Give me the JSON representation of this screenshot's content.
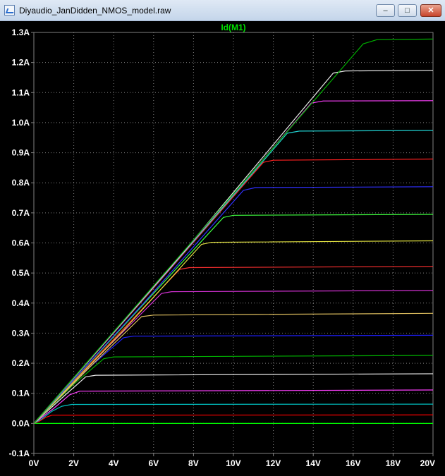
{
  "window": {
    "title": "Diyaudio_JanDidden_NMOS_model.raw"
  },
  "colors": {
    "background": "#000000",
    "grid": "#808080",
    "tick_text": "#ffffff",
    "title": "#00e000"
  },
  "chart_data": {
    "type": "line",
    "title": "Id(M1)",
    "xlabel": "",
    "ylabel": "",
    "xlim": [
      0,
      20
    ],
    "ylim": [
      -0.1,
      1.3
    ],
    "x_ticks": [
      "0V",
      "2V",
      "4V",
      "6V",
      "8V",
      "10V",
      "12V",
      "14V",
      "16V",
      "18V",
      "20V"
    ],
    "y_ticks": [
      "1.3A",
      "1.2A",
      "1.1A",
      "1.0A",
      "0.9A",
      "0.8A",
      "0.7A",
      "0.6A",
      "0.5A",
      "0.4A",
      "0.3A",
      "0.2A",
      "0.1A",
      "0.0A",
      "-0.1A"
    ],
    "grid": true,
    "series": [
      {
        "color": "#00ff00",
        "values": [
          [
            0,
            0
          ],
          [
            0.02,
            0.0
          ],
          [
            20,
            0.0
          ]
        ]
      },
      {
        "color": "#ff0000",
        "values": [
          [
            0,
            0
          ],
          [
            0.3,
            0.008
          ],
          [
            0.6,
            0.02
          ],
          [
            0.9,
            0.027
          ],
          [
            20,
            0.028
          ]
        ]
      },
      {
        "color": "#00c0c0",
        "values": [
          [
            0,
            0
          ],
          [
            0.4,
            0.015
          ],
          [
            0.9,
            0.04
          ],
          [
            1.4,
            0.057
          ],
          [
            1.9,
            0.063
          ],
          [
            20,
            0.064
          ]
        ]
      },
      {
        "color": "#ff40ff",
        "values": [
          [
            0,
            0
          ],
          [
            1.0,
            0.05
          ],
          [
            1.8,
            0.095
          ],
          [
            2.3,
            0.107
          ],
          [
            20,
            0.111
          ]
        ]
      },
      {
        "color": "#e8e8e8",
        "values": [
          [
            0,
            0
          ],
          [
            1.5,
            0.09
          ],
          [
            2.6,
            0.155
          ],
          [
            3.1,
            0.16
          ],
          [
            20,
            0.165
          ]
        ]
      },
      {
        "color": "#00b000",
        "values": [
          [
            0,
            0
          ],
          [
            2.0,
            0.13
          ],
          [
            3.5,
            0.215
          ],
          [
            4.0,
            0.221
          ],
          [
            20,
            0.226
          ]
        ]
      },
      {
        "color": "#2020ff",
        "values": [
          [
            0,
            0
          ],
          [
            2.5,
            0.17
          ],
          [
            4.5,
            0.285
          ],
          [
            5.0,
            0.29
          ],
          [
            20,
            0.293
          ]
        ]
      },
      {
        "color": "#e0c060",
        "values": [
          [
            0,
            0
          ],
          [
            3.0,
            0.2
          ],
          [
            5.4,
            0.355
          ],
          [
            6.0,
            0.36
          ],
          [
            20,
            0.366
          ]
        ]
      },
      {
        "color": "#d030d0",
        "values": [
          [
            0,
            0
          ],
          [
            3.5,
            0.24
          ],
          [
            6.4,
            0.432
          ],
          [
            6.9,
            0.438
          ],
          [
            20,
            0.442
          ]
        ]
      },
      {
        "color": "#ff3030",
        "values": [
          [
            0,
            0
          ],
          [
            4.0,
            0.28
          ],
          [
            7.3,
            0.512
          ],
          [
            7.8,
            0.518
          ],
          [
            20,
            0.522
          ]
        ]
      },
      {
        "color": "#e0e040",
        "values": [
          [
            0,
            0
          ],
          [
            4.5,
            0.31
          ],
          [
            8.4,
            0.595
          ],
          [
            8.9,
            0.602
          ],
          [
            20,
            0.607
          ]
        ]
      },
      {
        "color": "#40ff40",
        "values": [
          [
            0,
            0
          ],
          [
            5.0,
            0.36
          ],
          [
            9.5,
            0.685
          ],
          [
            10.0,
            0.692
          ],
          [
            20,
            0.695
          ]
        ]
      },
      {
        "color": "#3030ff",
        "values": [
          [
            0,
            0
          ],
          [
            5.5,
            0.4
          ],
          [
            10.5,
            0.775
          ],
          [
            11.1,
            0.784
          ],
          [
            20,
            0.787
          ]
        ]
      },
      {
        "color": "#ff2020",
        "values": [
          [
            0,
            0
          ],
          [
            6.0,
            0.45
          ],
          [
            11.5,
            0.868
          ],
          [
            12.0,
            0.875
          ],
          [
            20,
            0.879
          ]
        ]
      },
      {
        "color": "#20d0d0",
        "values": [
          [
            0,
            0
          ],
          [
            6.5,
            0.49
          ],
          [
            12.7,
            0.965
          ],
          [
            13.3,
            0.972
          ],
          [
            20,
            0.974
          ]
        ]
      },
      {
        "color": "#ff40ff",
        "values": [
          [
            0,
            0
          ],
          [
            7.0,
            0.53
          ],
          [
            13.9,
            1.065
          ],
          [
            14.5,
            1.072
          ],
          [
            20,
            1.073
          ]
        ]
      },
      {
        "color": "#e8e8e8",
        "values": [
          [
            0,
            0
          ],
          [
            7.5,
            0.57
          ],
          [
            15.0,
            1.165
          ],
          [
            15.6,
            1.172
          ],
          [
            20,
            1.174
          ]
        ]
      },
      {
        "color": "#00b000",
        "values": [
          [
            0,
            0
          ],
          [
            8.0,
            0.61
          ],
          [
            16.5,
            1.262
          ],
          [
            17.2,
            1.276
          ],
          [
            20,
            1.278
          ]
        ]
      }
    ]
  }
}
